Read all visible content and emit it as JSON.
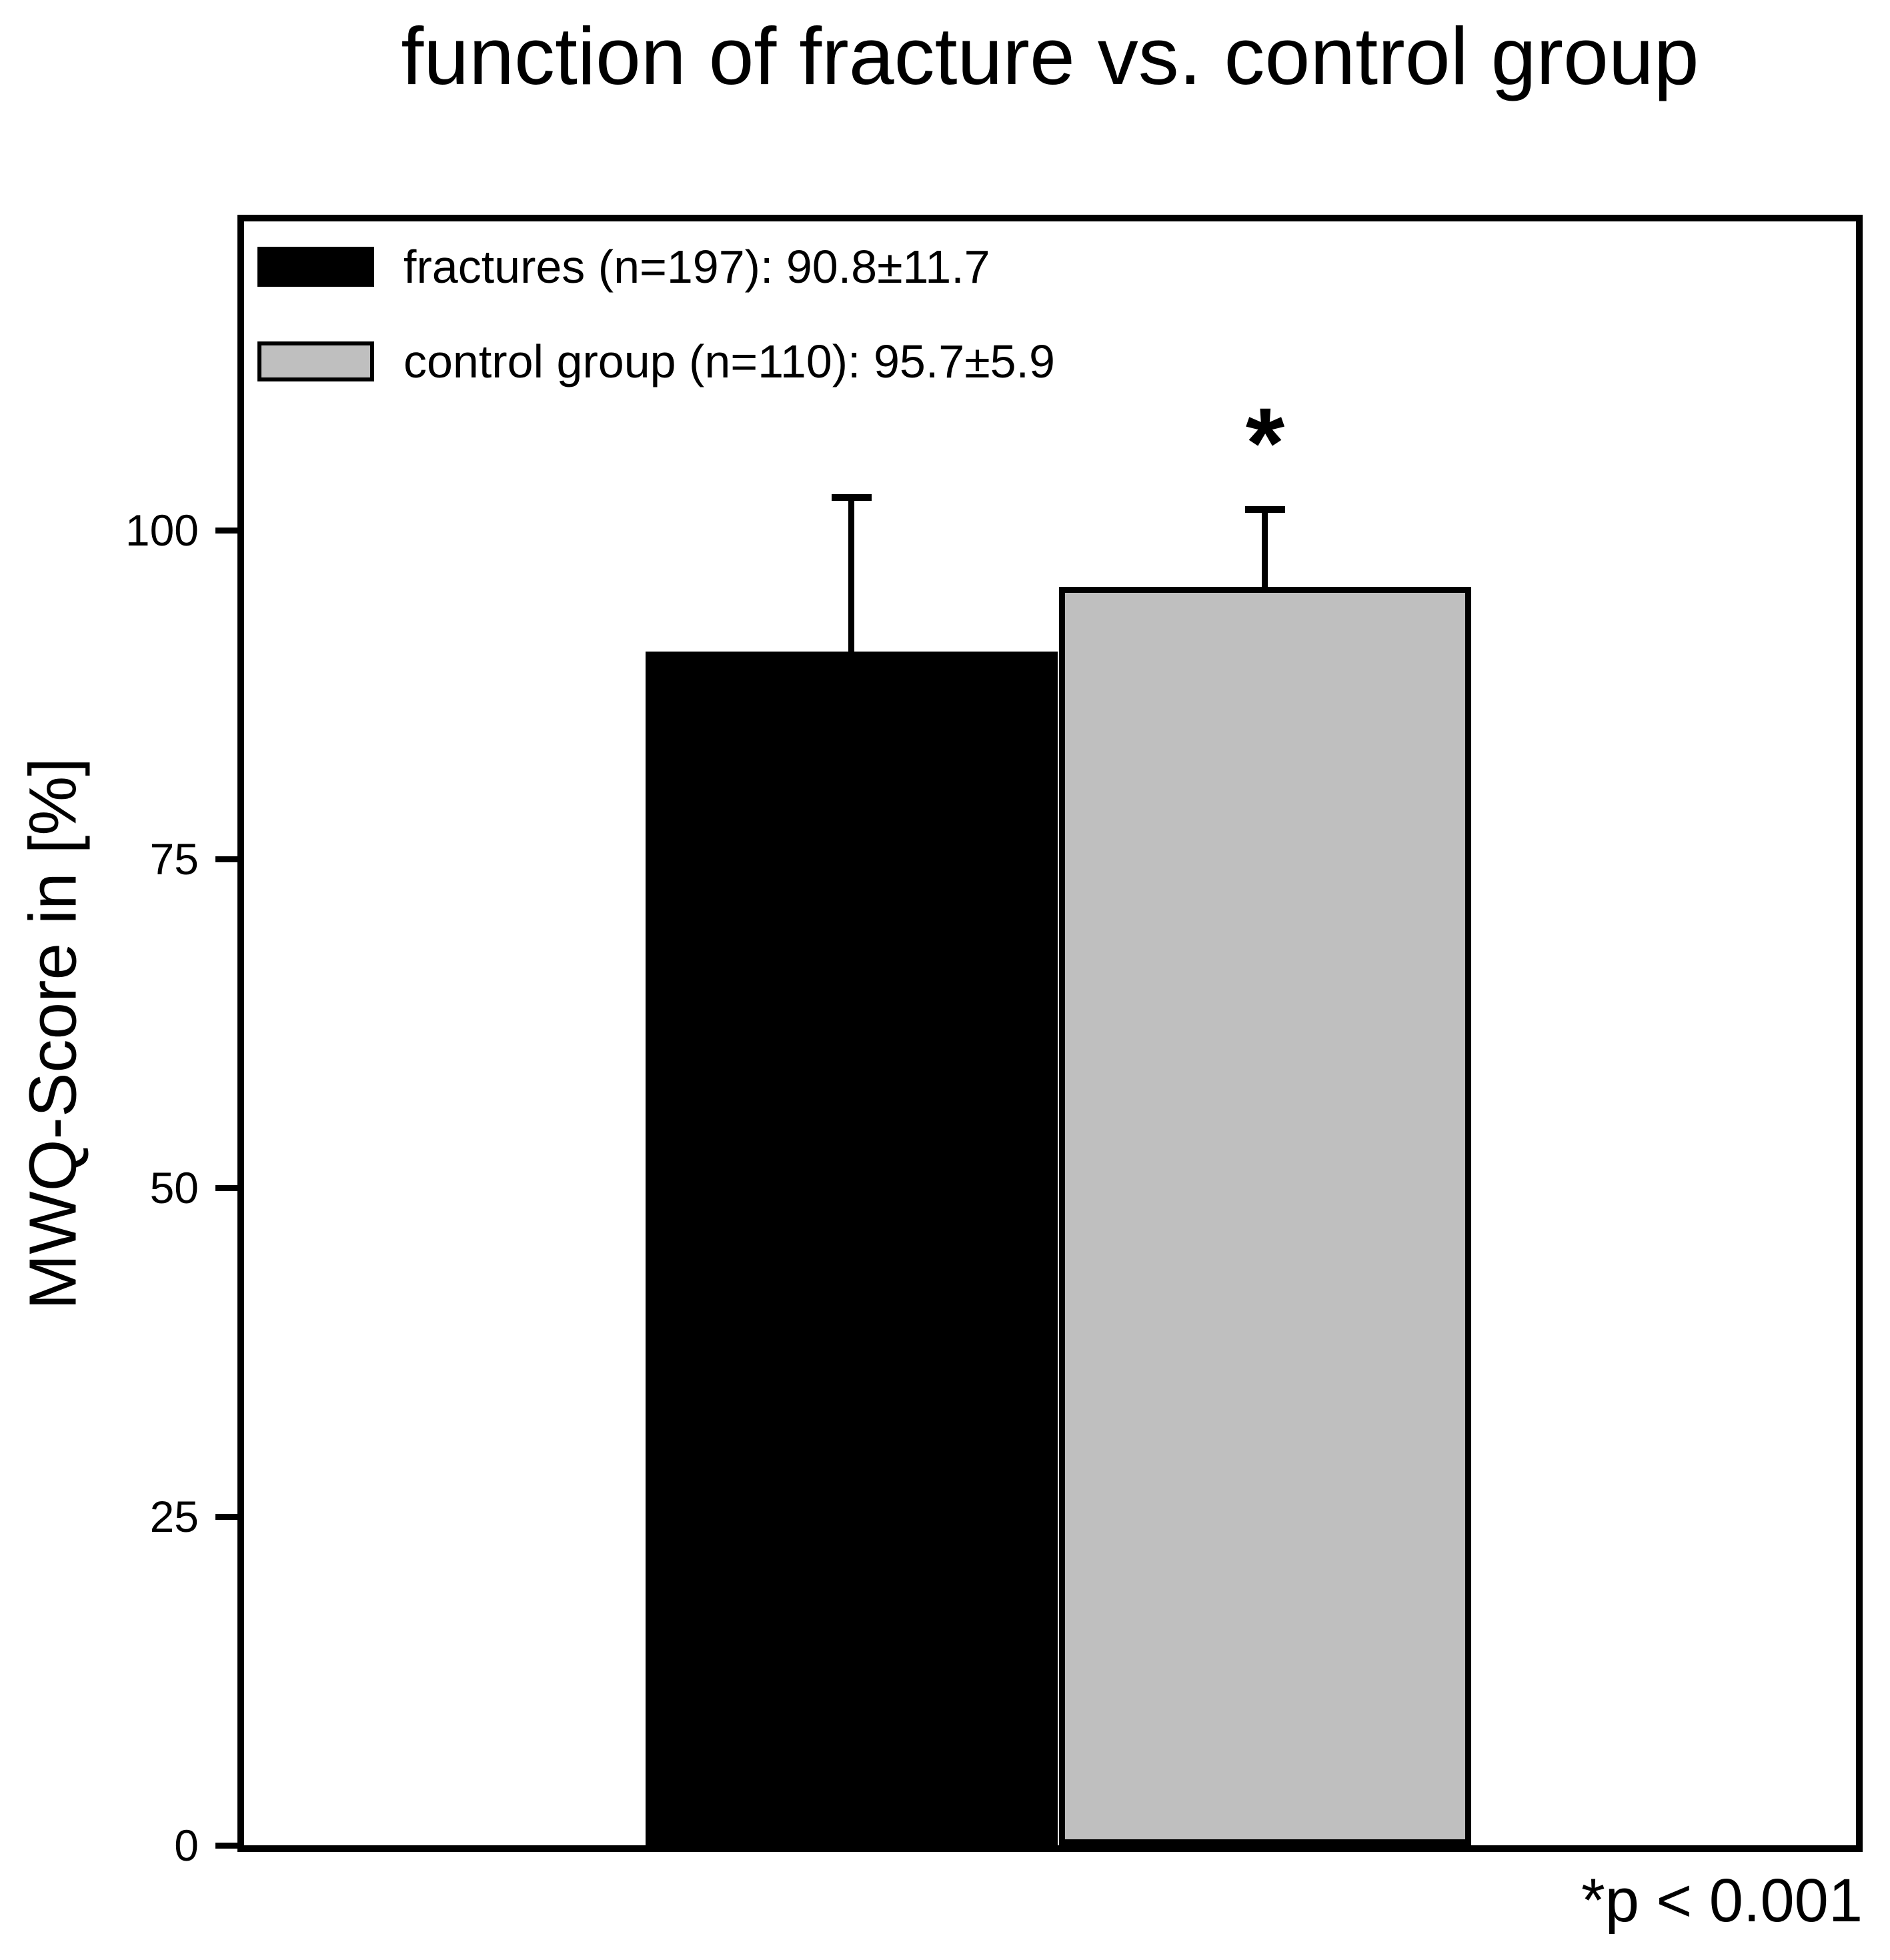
{
  "chart_data": {
    "type": "bar",
    "title": "function of fracture vs. control group",
    "ylabel": "MWQ-Score in [%]",
    "xlabel": "",
    "ylim": [
      0,
      123.5
    ],
    "yticks": [
      0,
      25,
      50,
      75,
      100
    ],
    "grid": false,
    "legend_position": "upper-left-inside",
    "categories": [
      "fractures",
      "control group"
    ],
    "series": [
      {
        "name": "fractures",
        "n": 197,
        "mean": 90.8,
        "sd": 11.7,
        "bar_color": "#000000",
        "legend_label": "fractures (n=197): 90.8±11.7",
        "significance": ""
      },
      {
        "name": "control-group",
        "n": 110,
        "mean": 95.7,
        "sd": 5.9,
        "bar_color": "#bfbfbf",
        "legend_label": "control group (n=110): 95.7±5.9",
        "significance": "*"
      }
    ],
    "error_bars": "mean + SD, upper only, capped",
    "annotation": "*p < 0.001",
    "frame_color": "#000000",
    "background_color": "#ffffff"
  }
}
